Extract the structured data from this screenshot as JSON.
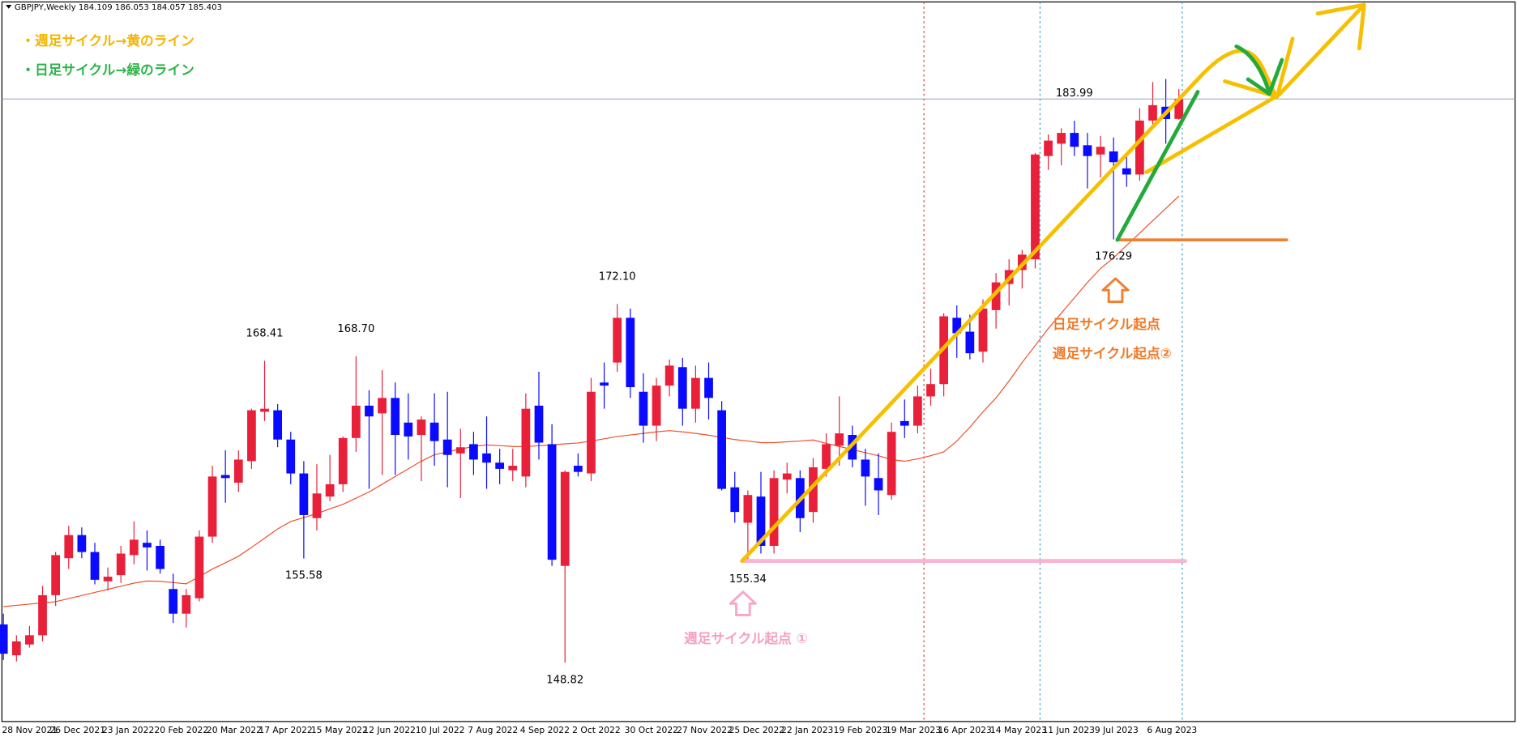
{
  "chart_data": {
    "type": "candlestick",
    "title": "GBPJPY,Weekly",
    "categories": [
      "28 Nov 2021",
      null,
      null,
      null,
      "26 Dec 2021",
      null,
      null,
      null,
      "23 Jan 2022",
      null,
      null,
      null,
      "20 Feb 2022",
      null,
      null,
      null,
      "20 Mar 2022",
      null,
      null,
      null,
      "17 Apr 2022",
      null,
      null,
      null,
      "15 May 2022",
      null,
      null,
      null,
      "12 Jun 2022",
      null,
      null,
      null,
      "10 Jul 2022",
      null,
      null,
      null,
      "7 Aug 2022",
      null,
      null,
      null,
      "4 Sep 2022",
      null,
      null,
      null,
      "2 Oct 2022",
      null,
      null,
      null,
      "30 Oct 2022",
      null,
      null,
      null,
      "27 Nov 2022",
      null,
      null,
      null,
      "25 Dec 2022",
      null,
      null,
      null,
      "22 Jan 2023",
      null,
      null,
      null,
      "19 Feb 2023",
      null,
      null,
      null,
      "19 Mar 2023",
      null,
      null,
      null,
      "16 Apr 2023",
      null,
      null,
      null,
      "14 May 2023",
      null,
      null,
      null,
      "11 Jun 2023",
      null,
      null,
      null,
      "9 Jul 2023",
      null,
      null,
      null,
      "6 Aug 2023",
      null,
      null
    ],
    "open": [
      151.3,
      149.3,
      150.0,
      150.6,
      153.2,
      155.6,
      157.1,
      156.0,
      154.1,
      154.5,
      155.8,
      156.6,
      156.4,
      153.6,
      152.0,
      153.0,
      157.0,
      161.0,
      160.5,
      161.9,
      165.1,
      165.2,
      163.3,
      161.1,
      158.2,
      159.6,
      160.4,
      163.4,
      165.5,
      165.0,
      166.0,
      164.4,
      163.6,
      164.4,
      163.3,
      162.4,
      163.0,
      162.4,
      161.8,
      161.3,
      160.9,
      165.5,
      163.0,
      155.1,
      161.6,
      161.1,
      167.0,
      168.3,
      171.2,
      166.4,
      164.2,
      166.8,
      168.0,
      165.3,
      167.3,
      165.2,
      160.2,
      157.9,
      159.6,
      156.4,
      160.7,
      160.8,
      158.6,
      161.4,
      162.9,
      163.6,
      162.0,
      160.8,
      159.7,
      164.5,
      164.2,
      166.1,
      166.9,
      171.2,
      170.3,
      169.0,
      171.7,
      173.4,
      174.3,
      175.0,
      181.7,
      182.5,
      183.2,
      182.4,
      181.8,
      182.0,
      180.9,
      180.5,
      184.0,
      184.9,
      184.109
    ],
    "high": [
      152.0,
      150.6,
      151.2,
      153.8,
      156.0,
      157.7,
      157.6,
      156.6,
      155.0,
      156.4,
      158.0,
      157.4,
      156.8,
      154.6,
      153.6,
      157.4,
      161.6,
      162.6,
      162.6,
      165.3,
      168.41,
      165.6,
      163.8,
      161.9,
      161.7,
      162.3,
      163.5,
      168.7,
      166.5,
      167.8,
      167.0,
      166.3,
      164.8,
      166.3,
      166.4,
      164.0,
      163.8,
      164.8,
      162.7,
      162.7,
      166.3,
      167.7,
      164.3,
      161.3,
      162.4,
      167.3,
      168.3,
      172.1,
      171.8,
      167.6,
      167.3,
      168.5,
      168.6,
      168.1,
      168.3,
      165.8,
      161.2,
      160.0,
      161.2,
      161.3,
      161.8,
      161.3,
      162.1,
      163.7,
      166.1,
      164.2,
      162.7,
      162.4,
      164.4,
      165.9,
      166.8,
      167.9,
      171.5,
      172.0,
      171.4,
      172.4,
      174.1,
      175.0,
      175.6,
      181.9,
      183.1,
      183.5,
      183.99,
      183.2,
      183.0,
      182.9,
      181.9,
      184.8,
      186.5,
      186.7,
      186.053
    ],
    "low": [
      149.0,
      148.9,
      149.8,
      150.2,
      152.5,
      154.9,
      155.6,
      153.9,
      153.5,
      154.0,
      155.2,
      154.8,
      154.6,
      151.4,
      151.1,
      152.8,
      156.6,
      159.2,
      159.9,
      161.4,
      164.5,
      162.8,
      160.4,
      155.58,
      157.4,
      159.3,
      159.9,
      162.5,
      160.1,
      161.0,
      161.0,
      162.0,
      160.6,
      161.6,
      160.2,
      159.5,
      161.0,
      160.1,
      160.4,
      160.6,
      160.2,
      162.0,
      155.1,
      148.82,
      160.9,
      160.6,
      165.3,
      167.7,
      166.0,
      163.1,
      163.2,
      166.1,
      164.2,
      164.4,
      164.6,
      160.0,
      157.9,
      155.34,
      155.9,
      155.9,
      159.8,
      157.3,
      157.9,
      160.9,
      161.6,
      161.5,
      159.0,
      158.4,
      159.4,
      163.4,
      163.7,
      165.5,
      166.1,
      168.6,
      168.5,
      168.3,
      170.5,
      172.0,
      173.1,
      174.4,
      180.8,
      181.1,
      181.7,
      179.6,
      180.3,
      176.29,
      179.7,
      180.1,
      183.6,
      182.5,
      184.057
    ],
    "close": [
      149.4,
      150.2,
      150.6,
      153.2,
      155.8,
      157.1,
      156.0,
      154.2,
      154.4,
      155.9,
      156.8,
      156.3,
      154.9,
      152.0,
      153.2,
      157.0,
      160.9,
      160.8,
      162.0,
      165.2,
      165.3,
      163.3,
      161.1,
      158.4,
      159.8,
      160.4,
      163.4,
      165.5,
      164.8,
      166.0,
      163.6,
      163.5,
      164.6,
      163.2,
      162.3,
      162.8,
      162.0,
      161.8,
      161.4,
      161.6,
      165.3,
      163.1,
      155.5,
      161.2,
      161.2,
      166.4,
      166.8,
      171.2,
      166.7,
      164.2,
      166.8,
      168.1,
      165.3,
      167.3,
      166.0,
      160.1,
      158.6,
      159.7,
      156.4,
      160.8,
      161.1,
      158.2,
      161.5,
      163.0,
      163.7,
      162.0,
      160.9,
      160.0,
      163.8,
      164.2,
      166.1,
      166.9,
      171.3,
      170.2,
      168.9,
      171.8,
      173.5,
      174.3,
      175.3,
      181.8,
      182.7,
      183.2,
      182.3,
      181.7,
      182.3,
      181.3,
      180.5,
      184.0,
      185.0,
      184.1,
      185.403
    ],
    "up_color": "#e8203a",
    "down_color": "#0a0aff",
    "ma": {
      "color": "#f0502a",
      "values": [
        152.46,
        152.54,
        152.62,
        152.7,
        152.78,
        152.98,
        153.18,
        153.38,
        153.58,
        153.78,
        153.98,
        154.12,
        154.1,
        154.02,
        153.94,
        154.4,
        154.9,
        155.3,
        155.73,
        156.3,
        156.9,
        157.5,
        157.98,
        158.24,
        158.5,
        158.8,
        159.1,
        159.5,
        159.9,
        160.4,
        160.9,
        161.4,
        161.9,
        162.32,
        162.5,
        162.68,
        162.85,
        162.95,
        162.91,
        162.85,
        162.84,
        162.9,
        162.95,
        163.02,
        163.08,
        163.2,
        163.35,
        163.5,
        163.6,
        163.7,
        163.8,
        163.88,
        163.8,
        163.7,
        163.58,
        163.45,
        163.3,
        163.2,
        163.1,
        163.1,
        163.15,
        163.2,
        163.27,
        163.05,
        162.85,
        162.65,
        162.45,
        162.25,
        162.0,
        161.89,
        162.05,
        162.25,
        162.5,
        163.2,
        164.1,
        165.1,
        166.0,
        167.1,
        168.3,
        169.4,
        170.5,
        171.5,
        172.5,
        173.5,
        174.4,
        175.1,
        175.9,
        176.7,
        177.5,
        178.3,
        179.1
      ]
    },
    "ylim": [
      145.0,
      191.7
    ],
    "price_labels": [
      168.41,
      {
        "value": 168.7,
        "label": "168.70"
      },
      {
        "value": 172.1,
        "label": "172.10"
      },
      155.58,
      155.34,
      148.82,
      183.99,
      176.29
    ],
    "notes": [
      "・週足サイクル→黄のライン",
      "・日足サイクル→緑のライン"
    ],
    "annotations": [
      "日足サイクル起点",
      "週足サイクル起点②",
      "週足サイクル起点 ①"
    ]
  }
}
